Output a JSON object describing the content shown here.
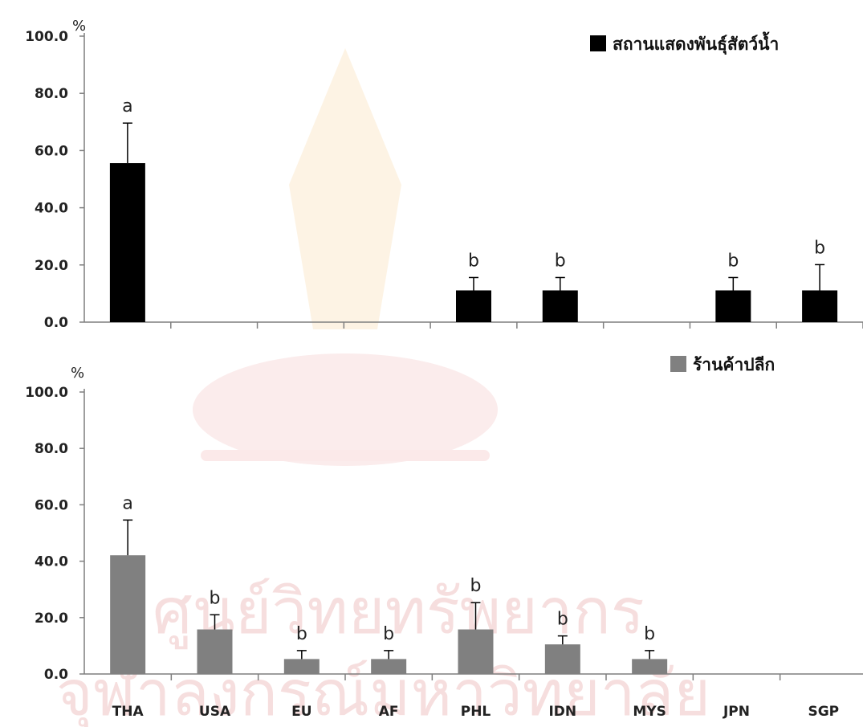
{
  "watermark": {
    "line1": "ศูนย์วิทยทรัพยากร",
    "line2": "จุฬาลงกรณ์มหาวิทยาลัย"
  },
  "colors": {
    "panel_top_bar": "#000000",
    "panel_bottom_bar": "#808080",
    "axis": "#7f7f7f",
    "error_bar": "#000000",
    "watermark": "#f6dede"
  },
  "chart_data": [
    {
      "type": "bar",
      "unit_label": "%",
      "categories": [
        "THA",
        "USA",
        "EU",
        "AF",
        "PHL",
        "IDN",
        "MYS",
        "JPN",
        "SGP"
      ],
      "series": [
        {
          "name": "สถานแสดงพันธุ์สัตว์น้ำ",
          "values": [
            55.6,
            0,
            0,
            0,
            11.1,
            11.1,
            0,
            11.1,
            11.1
          ],
          "error": [
            14.0,
            0,
            0,
            0,
            4.5,
            4.5,
            0,
            4.5,
            9.0
          ],
          "sig_letters": [
            "a",
            "",
            "",
            "",
            "b",
            "b",
            "",
            "b",
            "b"
          ]
        }
      ],
      "yticks": [
        "0.0",
        "20.0",
        "40.0",
        "60.0",
        "80.0",
        "100.0"
      ],
      "ylim": [
        0,
        100
      ],
      "legend_position": "top-right",
      "show_category_labels": false
    },
    {
      "type": "bar",
      "unit_label": "%",
      "categories": [
        "THA",
        "USA",
        "EU",
        "AF",
        "PHL",
        "IDN",
        "MYS",
        "JPN",
        "SGP"
      ],
      "series": [
        {
          "name": "ร้านค้าปลีก",
          "values": [
            42.1,
            15.8,
            5.3,
            5.3,
            15.8,
            10.5,
            5.3,
            0,
            0
          ],
          "error": [
            12.5,
            5.2,
            3.0,
            3.0,
            9.5,
            3.0,
            3.0,
            0,
            0
          ],
          "sig_letters": [
            "a",
            "b",
            "b",
            "b",
            "b",
            "b",
            "b",
            "",
            ""
          ]
        }
      ],
      "yticks": [
        "0.0",
        "20.0",
        "40.0",
        "60.0",
        "80.0",
        "100.0"
      ],
      "ylim": [
        0,
        100
      ],
      "legend_position": "top-right",
      "show_category_labels": true
    }
  ]
}
